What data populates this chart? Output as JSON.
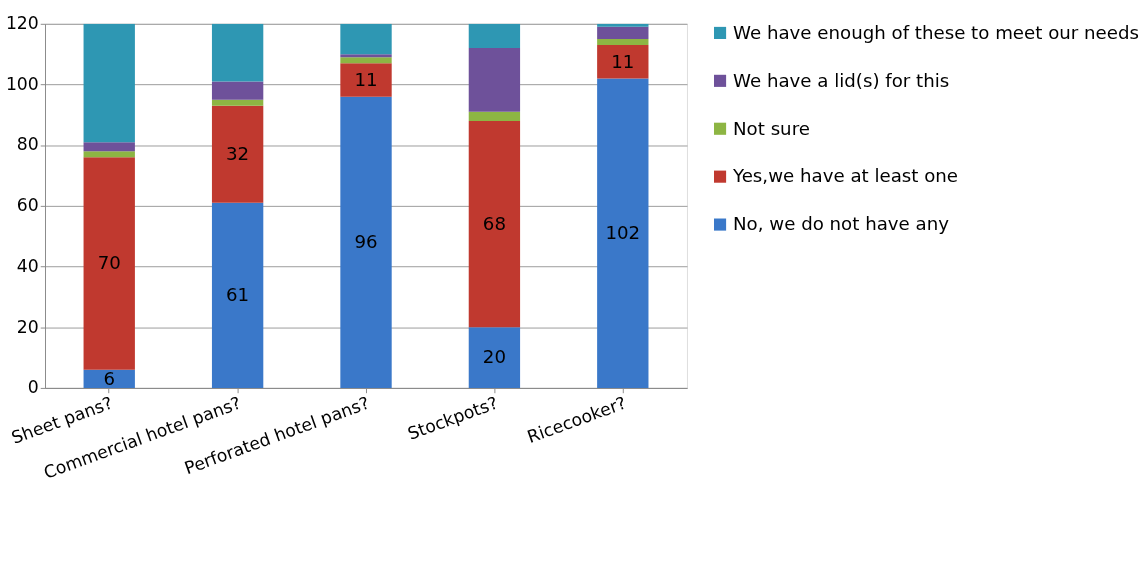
{
  "chart_data": {
    "type": "bar",
    "stacked": true,
    "categories": [
      "Sheet pans?",
      "Commercial hotel pans?",
      "Perforated hotel pans?",
      "Stockpots?",
      "Ricecooker?"
    ],
    "series": [
      {
        "name": "No, we do not have any",
        "color": "#3a78c9",
        "values": [
          6,
          61,
          96,
          20,
          102
        ],
        "value_labels": [
          "6",
          "61",
          "96",
          "20",
          "102"
        ]
      },
      {
        "name": "Yes,we have at least one",
        "color": "#c0392f",
        "values": [
          70,
          32,
          11,
          68,
          11
        ],
        "value_labels": [
          "70",
          "32",
          "11",
          "68",
          "11"
        ]
      },
      {
        "name": "Not sure",
        "color": "#8db543",
        "values": [
          2,
          2,
          2,
          3,
          2
        ]
      },
      {
        "name": "We have a lid(s) for this",
        "color": "#6e519a",
        "values": [
          3,
          6,
          1,
          21,
          4
        ]
      },
      {
        "name": "We have enough of these to meet our needs",
        "color": "#2e97b3",
        "values": [
          39,
          19,
          10,
          8,
          1
        ]
      }
    ],
    "ylim": [
      0,
      120
    ],
    "yticks": [
      0,
      20,
      40,
      60,
      80,
      100,
      120
    ],
    "grid": "y",
    "legend": "right"
  }
}
